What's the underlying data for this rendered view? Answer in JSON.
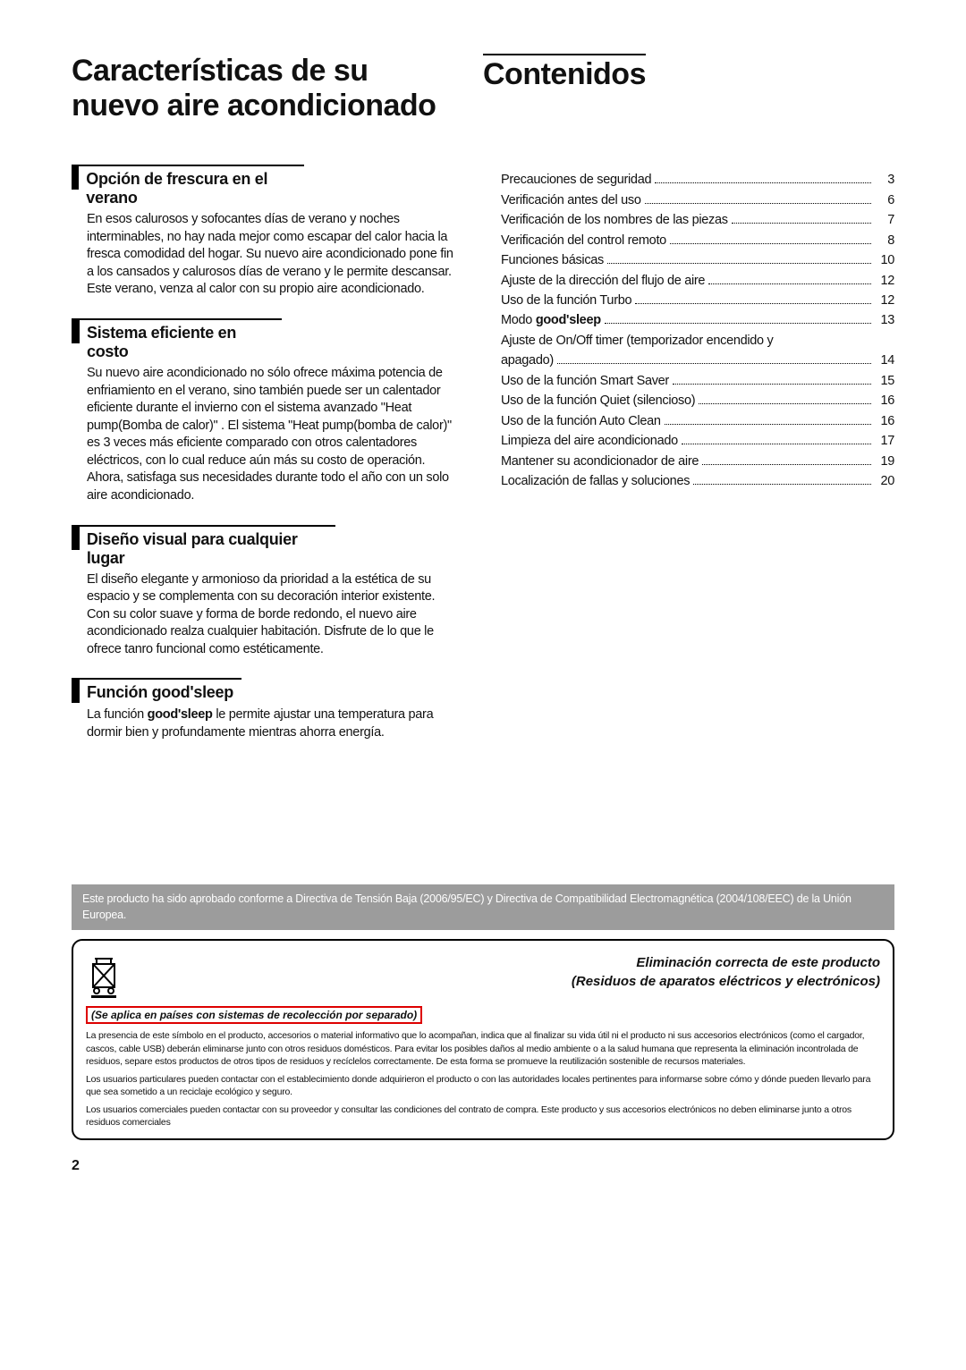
{
  "titles": {
    "left": "Características de su nuevo aire acondicionado",
    "right": "Contenidos"
  },
  "features": [
    {
      "wclass": "w1",
      "title_html": "Opción de frescura en el verano",
      "body_html": "En esos calurosos y sofocantes días de verano y noches interminables, no hay nada mejor como escapar del calor hacia la fresca comodidad del hogar. Su nuevo aire acondicionado pone fin a los cansados y calurosos días de verano y le permite descansar. Este verano, venza al calor con su propio aire acondicionado."
    },
    {
      "wclass": "w2",
      "title_html": "Sistema eficiente en costo",
      "body_html": "Su nuevo aire acondicionado no sólo ofrece máxima potencia de enfriamiento en el verano, sino también puede ser un calentador eficiente durante el invierno con el sistema avanzado \"Heat pump(Bomba de calor)\" . El sistema \"Heat pump(bomba de calor)\" es 3 veces más eficiente comparado con otros calentadores eléctricos, con lo cual reduce aún más su costo de operación. Ahora, satisfaga sus necesidades durante todo el año con un solo aire acondicionado."
    },
    {
      "wclass": "w3",
      "title_html": "Diseño visual para cualquier lugar",
      "body_html": "El diseño elegante y armonioso da prioridad a la estética de su espacio y se complementa con su decoración interior existente. Con su color suave y forma de borde redondo, el nuevo aire acondicionado realza cualquier habitación. Disfrute de lo que le ofrece tanro funcional como estéticamente."
    },
    {
      "wclass": "w4",
      "title_html": "Función <b>good'sleep</b>",
      "body_html": "La función <b>good'sleep</b> le permite ajustar una temperatura para dormir bien y profundamente mientras ahorra energía."
    }
  ],
  "toc": [
    {
      "label_html": "Precauciones de seguridad",
      "page": "3"
    },
    {
      "label_html": "Verificación antes del uso",
      "page": "6"
    },
    {
      "label_html": "Verificación de los nombres de las piezas",
      "page": "7"
    },
    {
      "label_html": "Verificación del control remoto",
      "page": "8"
    },
    {
      "label_html": "Funciones básicas",
      "page": "10"
    },
    {
      "label_html": "Ajuste de la dirección del flujo de aire",
      "page": "12"
    },
    {
      "label_html": "Uso de la función Turbo",
      "page": "12"
    },
    {
      "label_html": "Modo <b>good'sleep</b>",
      "page": "13"
    },
    {
      "label_html": "Ajuste de On/Off timer (temporizador encendido y",
      "wrap": true
    },
    {
      "label_html": "apagado)",
      "page": "14"
    },
    {
      "label_html": "Uso de la función Smart Saver",
      "page": "15"
    },
    {
      "label_html": "Uso de la función Quiet (silencioso)",
      "page": "16"
    },
    {
      "label_html": "Uso de la función Auto Clean",
      "page": "16"
    },
    {
      "label_html": "Limpieza del aire acondicionado",
      "page": "17"
    },
    {
      "label_html": "Mantener su acondicionador de aire",
      "page": "19"
    },
    {
      "label_html": "Localización de fallas y soluciones",
      "page": "20"
    }
  ],
  "directive": "Este producto ha sido aprobado conforme a Directiva de Tensión Baja (2006/95/EC) y Directiva de Compatibilidad Electromagnética (2004/108/EEC) de la Unión Europea.",
  "disposal": {
    "heading1": "Eliminación correcta de este producto",
    "heading2": "(Residuos de aparatos eléctricos y electrónicos)",
    "red_note": "(Se aplica en países con sistemas de recolección por separado)",
    "p1": "La presencia de este símbolo en el producto, accesorios o material informativo que lo acompañan, indica que al finalizar su vida útil ni el producto ni sus accesorios electrónicos (como el cargador, cascos, cable USB) deberán eliminarse junto con otros residuos domésticos. Para evitar los posibles daños al medio ambiente o a la salud humana que representa la eliminación incontrolada de residuos, separe estos productos de otros tipos de residuos y recíclelos correctamente. De esta forma se promueve la reutilización sostenible de recursos materiales.",
    "p2": "Los usuarios particulares pueden contactar con el establecimiento donde adquirieron el producto o con las autoridades locales pertinentes para informarse sobre cómo y dónde pueden llevarlo para que sea sometido a un reciclaje ecológico y seguro.",
    "p3": "Los usuarios comerciales pueden contactar con su proveedor y consultar las condiciones del contrato de compra. Este producto y sus accesorios electrónicos no deben eliminarse junto a otros residuos comerciales"
  },
  "page_number": "2"
}
